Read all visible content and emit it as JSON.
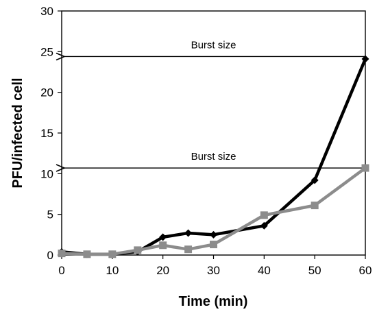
{
  "chart_data": {
    "type": "line",
    "xlabel": "Time (min)",
    "ylabel": "PFU/infected cell",
    "xlim": [
      0,
      60
    ],
    "ylim": [
      0,
      30
    ],
    "xticks": [
      0,
      10,
      20,
      30,
      40,
      50,
      60
    ],
    "yticks": [
      0,
      5,
      10,
      15,
      20,
      25,
      30
    ],
    "grid": false,
    "series": [
      {
        "color": "#000000",
        "marker": "diamond",
        "x": [
          0,
          5,
          10,
          15,
          20,
          25,
          30,
          40,
          50,
          60
        ],
        "y": [
          0.4,
          0.1,
          0.1,
          0.4,
          2.2,
          2.7,
          2.5,
          3.6,
          9.2,
          24.1
        ]
      },
      {
        "color": "#8c8c8c",
        "marker": "square",
        "x": [
          0,
          5,
          10,
          15,
          20,
          25,
          30,
          40,
          50,
          60
        ],
        "y": [
          0.2,
          0.1,
          0.1,
          0.6,
          1.2,
          0.7,
          1.3,
          4.9,
          6.1,
          10.7
        ]
      }
    ],
    "annotations": [
      {
        "text": "Burst size",
        "y": 24.4,
        "x_from": 60,
        "x_to": 0
      },
      {
        "text": "Burst size",
        "y": 10.7,
        "x_from": 60,
        "x_to": 0
      }
    ]
  }
}
